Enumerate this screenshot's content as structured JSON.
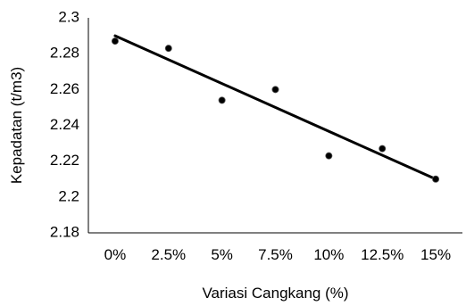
{
  "chart_data": {
    "type": "scatter",
    "title": "",
    "xlabel": "Variasi Cangkang (%)",
    "ylabel": "Kepadatan (t/m3)",
    "categories": [
      "0%",
      "2.5%",
      "5%",
      "7.5%",
      "10%",
      "12.5%",
      "15%"
    ],
    "x": [
      0,
      2.5,
      5,
      7.5,
      10,
      12.5,
      15
    ],
    "ylim": [
      2.18,
      2.3
    ],
    "yticks": [
      "2.18",
      "2.2",
      "2.22",
      "2.24",
      "2.26",
      "2.28",
      "2.3"
    ],
    "grid": false,
    "legend": "none",
    "series": [
      {
        "values": [
          2.287,
          2.283,
          2.254,
          2.26,
          2.223,
          2.227,
          2.21
        ],
        "marker_color": "#000000",
        "trendline": {
          "type": "linear",
          "start": 2.29,
          "end": 2.21,
          "color": "#000000"
        }
      }
    ]
  }
}
